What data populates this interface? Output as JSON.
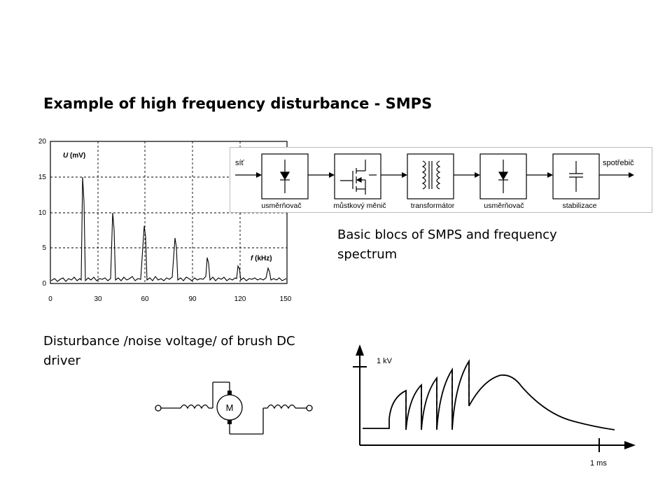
{
  "title": "Example of high frequency disturbance - SMPS",
  "smps_caption": "Basic blocs of SMPS and frequency spectrum",
  "motor_caption": "Disturbance /noise voltage/ of brush DC driver",
  "block_diagram": {
    "input_label": "síť",
    "output_label": "spotřebič",
    "blocks": [
      {
        "label": "usměrňovač",
        "icon": "diode-icon"
      },
      {
        "label": "můstkový měnič",
        "icon": "mosfet-icon"
      },
      {
        "label": "transformátor",
        "icon": "transformer-icon"
      },
      {
        "label": "usměrňovač",
        "icon": "diode-icon"
      },
      {
        "label": "stabilizace",
        "icon": "capacitor-icon"
      }
    ]
  },
  "spectrum": {
    "ylabel_var": "U",
    "ylabel_unit": " (mV)",
    "xlabel_var": "f",
    "xlabel_unit": " (kHz)",
    "yticks": [
      "20",
      "15",
      "10",
      "5",
      "0"
    ],
    "xticks": [
      "0",
      "30",
      "60",
      "90",
      "120",
      "150"
    ]
  },
  "motor": {
    "motor_label": "M"
  },
  "pulse": {
    "ylabel": "1 kV",
    "xlabel": "1 ms"
  }
}
